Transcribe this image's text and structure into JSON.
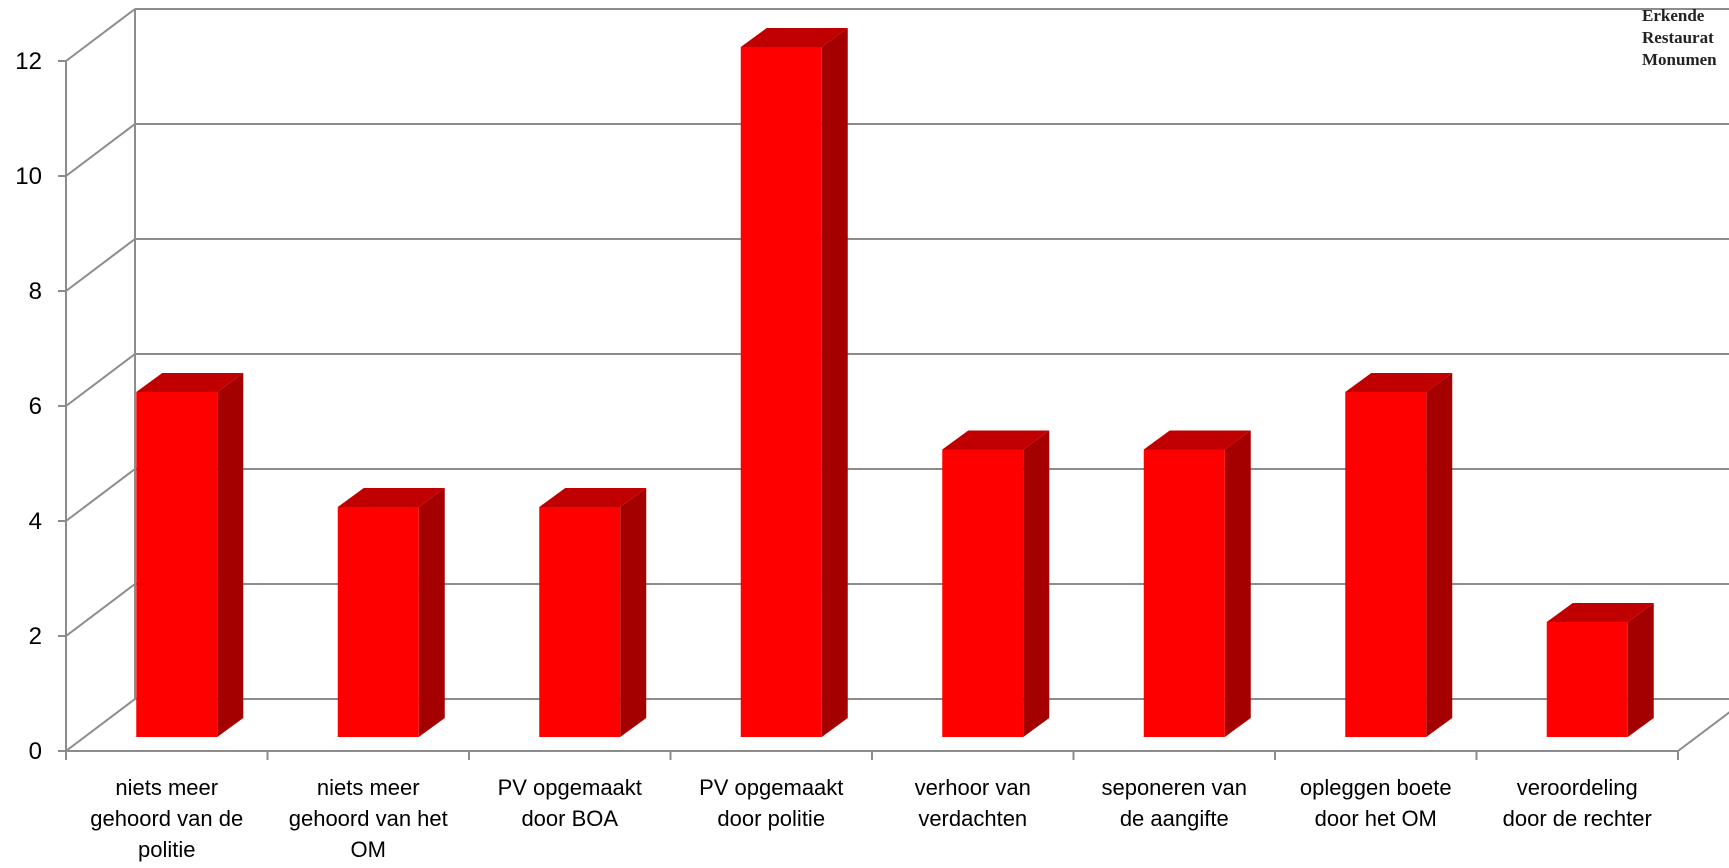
{
  "chart_data": {
    "type": "bar",
    "title": "",
    "xlabel": "",
    "ylabel": "",
    "ylim": [
      0,
      12
    ],
    "yticks": [
      0,
      2,
      4,
      6,
      8,
      10,
      12
    ],
    "yticks_labels": [
      "0",
      "2",
      "4",
      "6",
      "8",
      "10",
      "12"
    ],
    "grid": true,
    "categories": [
      [
        "niets meer",
        "gehoord van de",
        "politie"
      ],
      [
        "niets meer",
        "gehoord van het",
        "OM"
      ],
      [
        "PV opgemaakt",
        "door BOA"
      ],
      [
        "PV opgemaakt",
        "door politie"
      ],
      [
        "verhoor van",
        "verdachten"
      ],
      [
        "seponeren van",
        "de aangifte"
      ],
      [
        "opleggen boete",
        "door het OM"
      ],
      [
        "veroordeling",
        "door de rechter"
      ]
    ],
    "values": [
      6,
      4,
      4,
      12,
      5,
      5,
      6,
      2
    ],
    "colors": {
      "bar_front": "#ff0000",
      "bar_side": "#a50000",
      "bar_top": "#c00000",
      "gridline": "#8c8c8c"
    }
  },
  "corner_note": {
    "lines": [
      "Erkende",
      "Restaurat",
      "Monumen"
    ]
  }
}
